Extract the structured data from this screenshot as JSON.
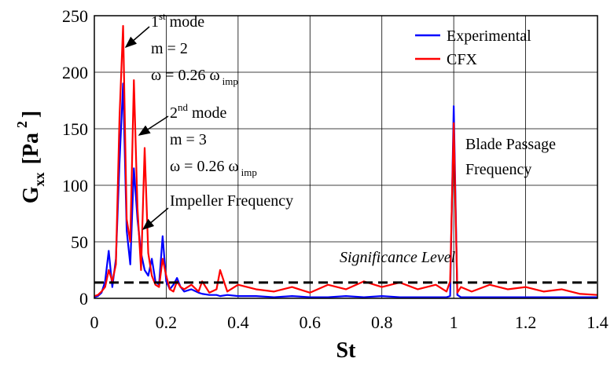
{
  "chart_data": {
    "type": "line",
    "ylabel": [
      "G",
      "xx",
      "[Pa",
      "2",
      "]"
    ],
    "xlabel": "St",
    "x": [
      0,
      0.01,
      0.02,
      0.03,
      0.04,
      0.05,
      0.06,
      0.07,
      0.08,
      0.09,
      0.1,
      0.11,
      0.12,
      0.13,
      0.14,
      0.15,
      0.16,
      0.17,
      0.18,
      0.19,
      0.2,
      0.21,
      0.22,
      0.23,
      0.24,
      0.25,
      0.27,
      0.29,
      0.3,
      0.32,
      0.34,
      0.35,
      0.37,
      0.4,
      0.45,
      0.5,
      0.55,
      0.6,
      0.65,
      0.7,
      0.75,
      0.8,
      0.85,
      0.9,
      0.95,
      0.98,
      0.99,
      1.0,
      1.01,
      1.02,
      1.05,
      1.1,
      1.15,
      1.2,
      1.25,
      1.3,
      1.35,
      1.4
    ],
    "series": [
      {
        "name": "Experimental",
        "color": "#0000ff",
        "values": [
          1,
          2,
          5,
          15,
          42,
          10,
          35,
          120,
          190,
          60,
          30,
          115,
          70,
          40,
          25,
          20,
          35,
          15,
          12,
          55,
          15,
          8,
          12,
          18,
          10,
          6,
          8,
          5,
          4,
          3,
          3,
          2,
          3,
          2,
          2,
          1,
          2,
          1,
          1,
          2,
          1,
          2,
          1,
          1,
          1,
          1,
          2,
          170,
          3,
          1,
          1,
          1,
          1,
          1,
          1,
          1,
          1,
          1
        ]
      },
      {
        "name": "CFX",
        "color": "#ff0000",
        "values": [
          2,
          3,
          6,
          10,
          25,
          15,
          30,
          160,
          241,
          70,
          50,
          193,
          80,
          25,
          133,
          40,
          20,
          12,
          10,
          35,
          20,
          8,
          6,
          15,
          10,
          8,
          12,
          6,
          15,
          5,
          8,
          25,
          6,
          12,
          8,
          6,
          10,
          5,
          12,
          8,
          15,
          10,
          14,
          8,
          12,
          6,
          15,
          155,
          5,
          10,
          6,
          12,
          8,
          10,
          6,
          8,
          4,
          3
        ]
      }
    ],
    "xlim": [
      0,
      1.4
    ],
    "xticks": [
      0,
      0.2,
      0.4,
      0.6,
      0.8,
      1,
      1.2,
      1.4
    ],
    "ylim": [
      0,
      250
    ],
    "yticks": [
      0,
      50,
      100,
      150,
      200,
      250
    ],
    "grid": true,
    "legend": "upper right",
    "significance_level": 14,
    "annotations": {
      "mode1": [
        "1",
        "st",
        " mode"
      ],
      "m1": "m = 2",
      "omega1": [
        "ω = 0.26 ω",
        "imp"
      ],
      "mode2": [
        "2",
        "nd",
        " mode"
      ],
      "m2": "m = 3",
      "omega2": [
        "ω = 0.26 ω",
        "imp"
      ],
      "impeller": "Impeller Frequency",
      "blade1": "Blade Passage",
      "blade2": "Frequency",
      "significance": "Significance Level"
    }
  }
}
